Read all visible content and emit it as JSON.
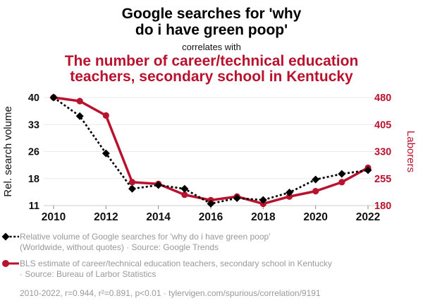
{
  "header": {
    "title_line1": "Google searches for 'why",
    "title_line2": "do i have green poop'",
    "correlates_with": "correlates with",
    "subtitle_line1": "The number of career/technical education",
    "subtitle_line2": "teachers, secondary school in Kentucky"
  },
  "colors": {
    "accent_red": "#b9122f",
    "series_black": "#000000",
    "legend_gray": "#999999",
    "gridline": "#e9e9e9",
    "axis_line": "#cccccc",
    "tick_mark": "#888888",
    "tick_label": "#111111"
  },
  "chart_data": {
    "type": "line",
    "x": [
      2010,
      2011,
      2012,
      2013,
      2014,
      2015,
      2016,
      2017,
      2018,
      2019,
      2020,
      2021,
      2022
    ],
    "x_tick_labels": [
      "2010",
      "2012",
      "2014",
      "2016",
      "2018",
      "2020",
      "2022"
    ],
    "left_axis": {
      "label": "Rel. search volume",
      "tick_labels": [
        "40",
        "33",
        "26",
        "18",
        "11"
      ],
      "min": 11,
      "max": 40
    },
    "right_axis": {
      "label": "Laborers",
      "tick_labels": [
        "480",
        "405",
        "330",
        "255",
        "180"
      ],
      "min": 180,
      "max": 480
    },
    "grid": "horizontal",
    "legend_position": "below",
    "series": [
      {
        "name": "Relative volume of Google searches for 'why do i have green poop'",
        "axis": "left",
        "style": "dashed-diamond",
        "values": [
          40,
          35,
          25,
          15.5,
          16.5,
          15.5,
          11.5,
          13,
          12.5,
          14.5,
          18,
          19.5,
          20.5
        ]
      },
      {
        "name": "BLS estimate of career/technical education teachers, secondary school in Kentucky",
        "axis": "right",
        "style": "solid-circle",
        "values": [
          480,
          470,
          430,
          245,
          240,
          210,
          195,
          205,
          185,
          205,
          220,
          245,
          285
        ]
      }
    ]
  },
  "legend": {
    "entries": [
      {
        "line1": "Relative volume of Google searches for 'why do i have green poop'",
        "line2": "(Worldwide, without quotes) · Source: Google Trends"
      },
      {
        "line1": "BLS estimate of career/technical education teachers, secondary school in Kentucky",
        "line2": "· Source: Bureau of Larbor Statistics"
      }
    ],
    "footer": "2010-2022, r=0.944, r²=0.891, p<0.01 · tylervigen.com/spurious/correlation/9191"
  }
}
